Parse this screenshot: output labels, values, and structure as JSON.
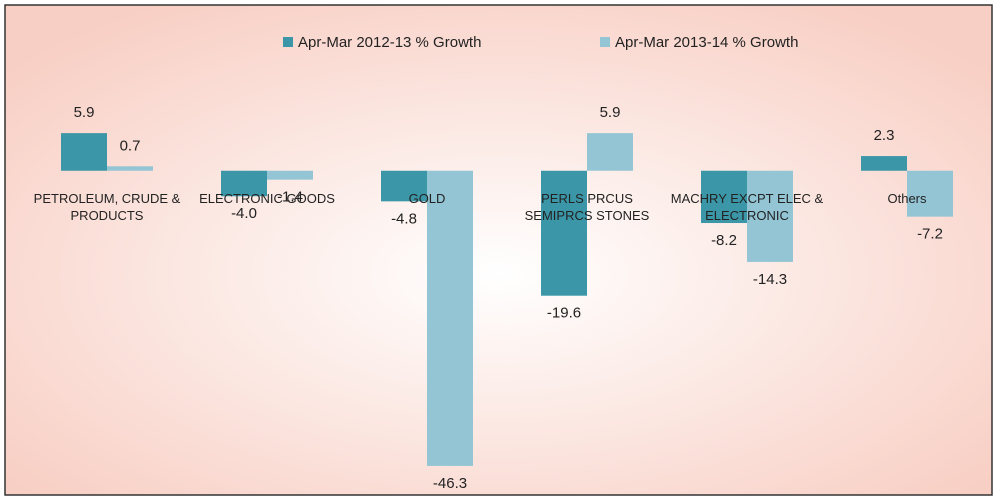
{
  "chart_data": {
    "type": "bar",
    "categories": [
      "PETROLEUM, CRUDE & PRODUCTS",
      "ELECTRONIC GOODS",
      "GOLD",
      "PERLS PRCUS SEMIPRCS STONES",
      "MACHRY EXCPT ELEC & ELECTRONIC",
      "Others"
    ],
    "series": [
      {
        "name": "Apr-Mar 2012-13 % Growth",
        "color": "#3b96a7",
        "values": [
          5.9,
          -4.0,
          -4.8,
          -19.6,
          -8.2,
          2.3
        ],
        "value_labels": [
          "5.9",
          "-4.0",
          "-4.8",
          "-19.6",
          "-8.2",
          "2.3"
        ]
      },
      {
        "name": "Apr-Mar 2013-14 % Growth",
        "color": "#93c5d5",
        "values": [
          0.7,
          -1.4,
          -46.3,
          5.9,
          -14.3,
          -7.2
        ],
        "value_labels": [
          "0.7",
          "-1.4",
          "-46.3",
          "5.9",
          "-14.3",
          "-7.2"
        ]
      }
    ],
    "ylim": [
      -50,
      10
    ],
    "legend": "top"
  }
}
